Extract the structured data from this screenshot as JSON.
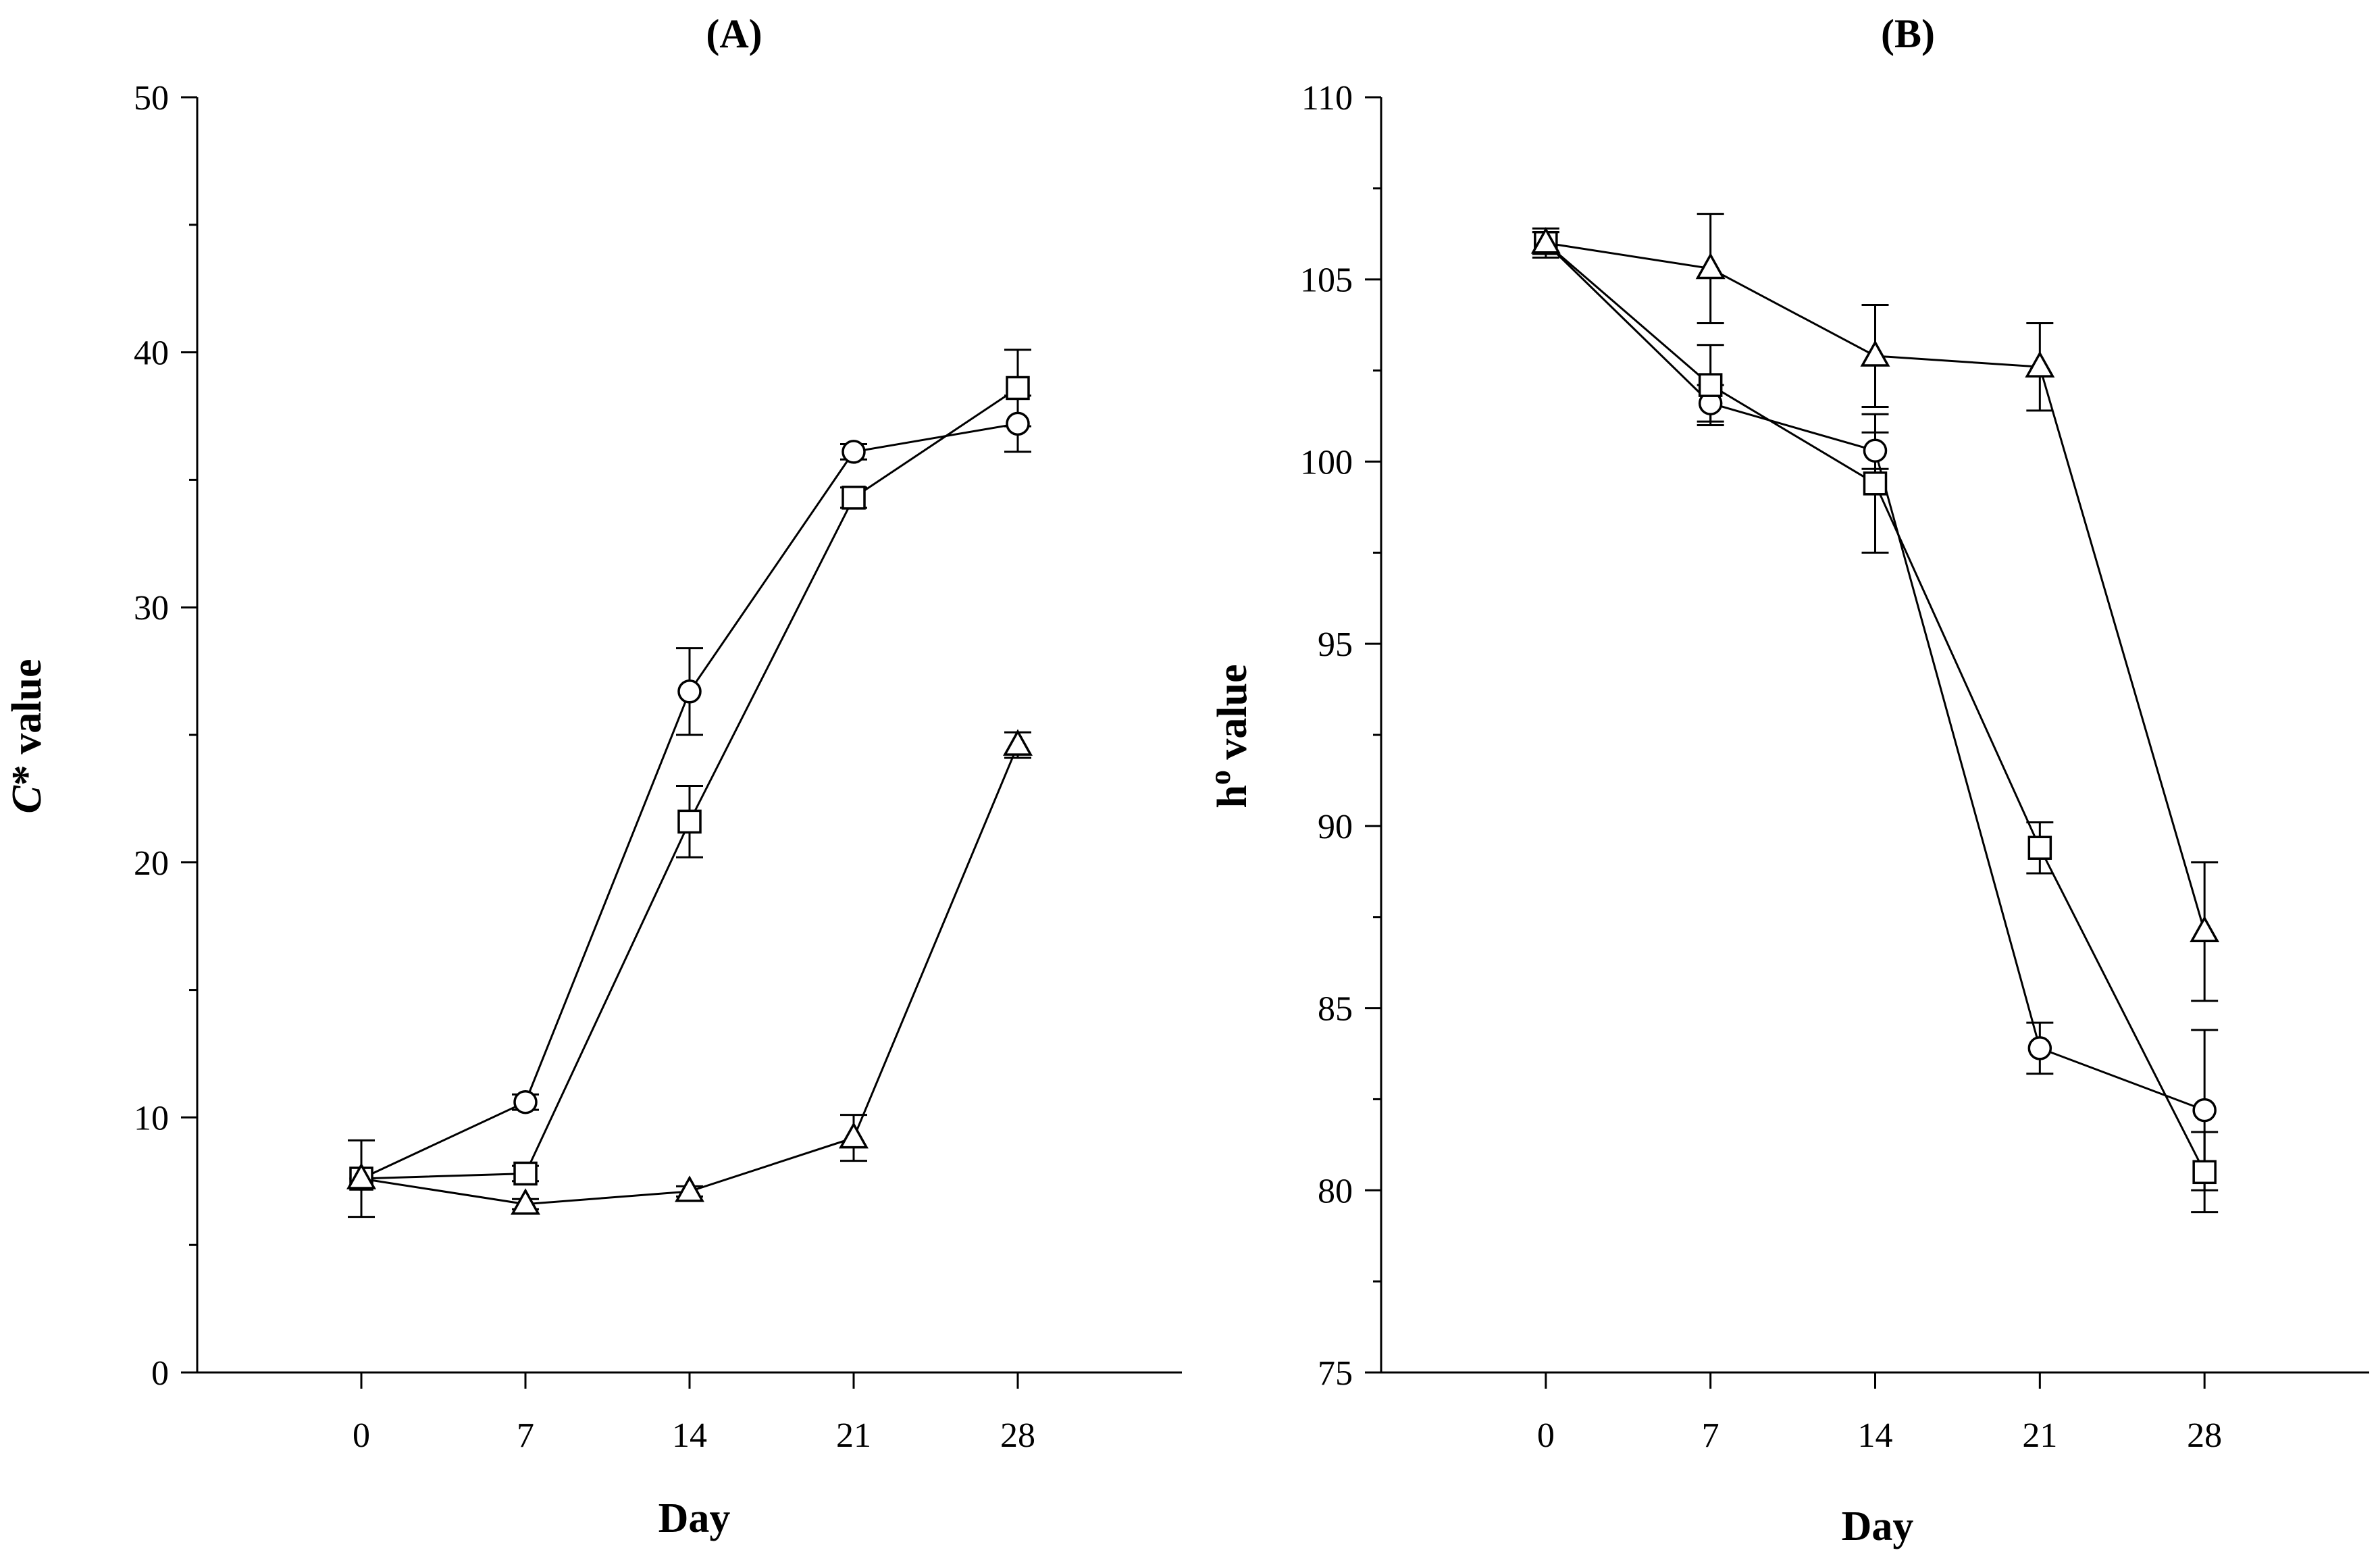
{
  "chart_data": [
    {
      "type": "line",
      "panel": "A",
      "title": "(A)",
      "xlabel": "Day",
      "ylabel_italic": "C",
      "ylabel_rest": "* value",
      "x": [
        0,
        7,
        14,
        21,
        28
      ],
      "x_ticks": [
        "0",
        "7",
        "14",
        "21",
        "28"
      ],
      "xlim": [
        -7,
        35
      ],
      "ylim": [
        0,
        50
      ],
      "y_ticks": [
        "0",
        "10",
        "20",
        "30",
        "40",
        "50"
      ],
      "grid": false,
      "series": [
        {
          "name": "circle",
          "marker": "circle",
          "values": [
            7.6,
            10.6,
            26.7,
            36.1,
            37.2
          ],
          "errors": [
            0.0,
            0.3,
            1.7,
            0.3,
            1.1
          ]
        },
        {
          "name": "square",
          "marker": "square",
          "values": [
            7.6,
            7.8,
            21.6,
            34.3,
            38.6
          ],
          "errors": [
            1.5,
            0.3,
            1.4,
            0.4,
            1.5
          ]
        },
        {
          "name": "triangle",
          "marker": "triangle",
          "values": [
            7.6,
            6.6,
            7.1,
            9.2,
            24.6
          ],
          "errors": [
            0.0,
            0.2,
            0.2,
            0.9,
            0.5
          ]
        }
      ]
    },
    {
      "type": "line",
      "panel": "B",
      "title": "(B)",
      "xlabel": "Day",
      "ylabel_main": "h",
      "ylabel_sup": "o",
      "ylabel_rest": " value",
      "x": [
        0,
        7,
        14,
        21,
        28
      ],
      "x_ticks": [
        "0",
        "7",
        "14",
        "21",
        "28"
      ],
      "xlim": [
        -7,
        35
      ],
      "ylim": [
        75,
        110
      ],
      "y_ticks": [
        "75",
        "80",
        "85",
        "90",
        "95",
        "100",
        "105",
        "110"
      ],
      "grid": false,
      "series": [
        {
          "name": "circle",
          "marker": "circle",
          "values": [
            106.0,
            101.6,
            100.3,
            83.9,
            82.2
          ],
          "errors": [
            0.4,
            0.5,
            0.5,
            0.7,
            2.2
          ]
        },
        {
          "name": "square",
          "marker": "square",
          "values": [
            106.0,
            102.1,
            99.4,
            89.4,
            80.5
          ],
          "errors": [
            0.3,
            1.1,
            1.9,
            0.7,
            1.1
          ]
        },
        {
          "name": "triangle",
          "marker": "triangle",
          "values": [
            106.0,
            105.3,
            102.9,
            102.6,
            87.1
          ],
          "errors": [
            0.3,
            1.5,
            1.4,
            1.2,
            1.9
          ]
        }
      ]
    }
  ]
}
